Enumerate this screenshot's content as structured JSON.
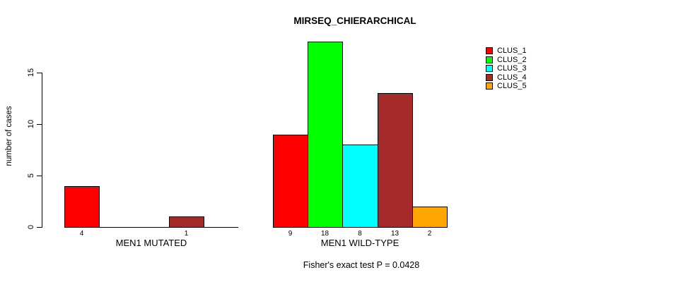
{
  "chart_data": {
    "type": "bar",
    "title": "MIRSEQ_CHIERARCHICAL",
    "ylabel": "number of cases",
    "annotation": "Fisher's exact test P = 0.0428",
    "ylim": [
      0,
      18
    ],
    "yticks": [
      0,
      5,
      10,
      15
    ],
    "grid": false,
    "legend_position": "top-right",
    "series": [
      {
        "name": "CLUS_1",
        "color": "#FF0000"
      },
      {
        "name": "CLUS_2",
        "color": "#00FF00"
      },
      {
        "name": "CLUS_3",
        "color": "#00FFFF"
      },
      {
        "name": "CLUS_4",
        "color": "#A52A2A"
      },
      {
        "name": "CLUS_5",
        "color": "#FFA500"
      }
    ],
    "groups": [
      {
        "label": "MEN1 MUTATED",
        "values": [
          4,
          0,
          0,
          1,
          0
        ]
      },
      {
        "label": "MEN1 WILD-TYPE",
        "values": [
          9,
          18,
          8,
          13,
          2
        ]
      }
    ],
    "colors": {
      "axis": "#000000",
      "background": "#ffffff"
    }
  }
}
